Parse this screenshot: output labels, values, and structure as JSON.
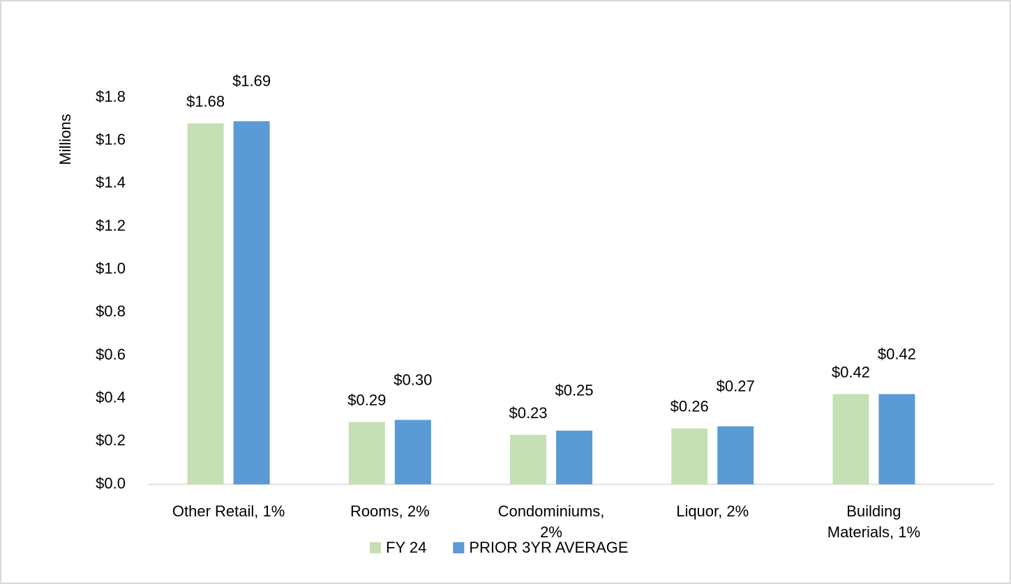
{
  "chart_data": {
    "type": "bar",
    "y_axis_label": "Millions",
    "categories": [
      "Other Retail, 1%",
      "Rooms, 2%",
      "Condominiums, 2%",
      "Liquor, 2%",
      "Building Materials, 1%"
    ],
    "series": [
      {
        "name": "FY 24",
        "color": "#c5e0b4",
        "values": [
          1.68,
          0.29,
          0.23,
          0.26,
          0.42
        ],
        "value_labels": [
          "$1.68",
          "$0.29",
          "$0.23",
          "$0.26",
          "$0.42"
        ]
      },
      {
        "name": "PRIOR 3YR AVERAGE",
        "color": "#5b9bd5",
        "values": [
          1.69,
          0.3,
          0.25,
          0.27,
          0.42
        ],
        "value_labels": [
          "$1.69",
          "$0.30",
          "$0.25",
          "$0.27",
          "$0.42"
        ]
      }
    ],
    "ylim": [
      0,
      1.8
    ],
    "yticks": [
      {
        "value": 0,
        "label": "$0.0"
      },
      {
        "value": 0.2,
        "label": "$0.2"
      },
      {
        "value": 0.4,
        "label": "$0.4"
      },
      {
        "value": 0.6,
        "label": "$0.6"
      },
      {
        "value": 0.8,
        "label": "$0.8"
      },
      {
        "value": 1.0,
        "label": "$1.0"
      },
      {
        "value": 1.2,
        "label": "$1.2"
      },
      {
        "value": 1.4,
        "label": "$1.4"
      },
      {
        "value": 1.6,
        "label": "$1.6"
      },
      {
        "value": 1.8,
        "label": "$1.8"
      }
    ],
    "grid": false,
    "legend": "bottom"
  }
}
